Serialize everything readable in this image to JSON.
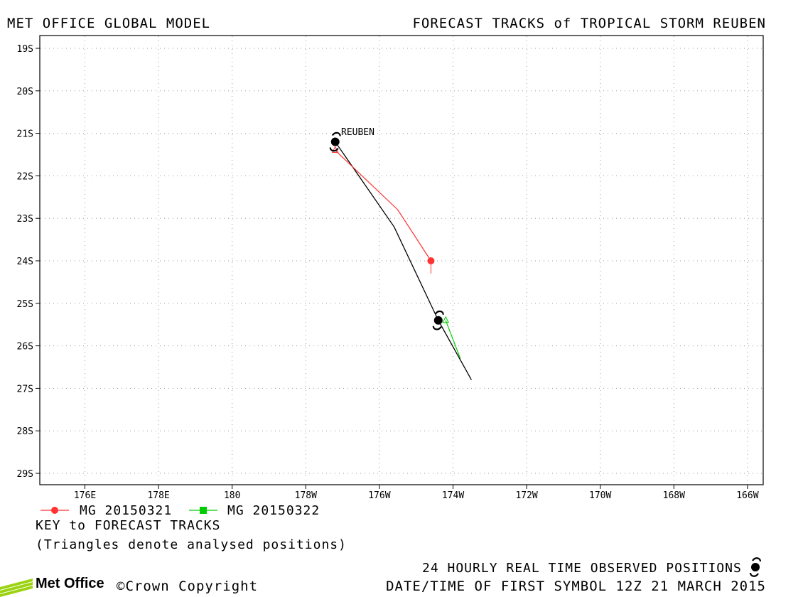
{
  "header": {
    "left_title": "MET OFFICE GLOBAL MODEL",
    "right_title": "FORECAST TRACKS of TROPICAL STORM REUBEN"
  },
  "map": {
    "lat_labels": [
      "19S",
      "20S",
      "21S",
      "22S",
      "23S",
      "24S",
      "25S",
      "26S",
      "27S",
      "28S",
      "29S"
    ],
    "lon_labels": [
      "176E",
      "178E",
      "180",
      "178W",
      "176W",
      "174W",
      "172W",
      "170W",
      "168W",
      "166W"
    ],
    "storm_label": "REUBEN",
    "observed_track": [
      {
        "lon": -177.2,
        "lat": -21.2
      },
      {
        "lon": -175.6,
        "lat": -23.2
      },
      {
        "lon": -174.4,
        "lat": -25.4
      },
      {
        "lon": -173.5,
        "lat": -26.8
      }
    ],
    "observed_positions": [
      {
        "lon": -177.2,
        "lat": -21.2
      },
      {
        "lon": -174.4,
        "lat": -25.4
      }
    ],
    "tracks": [
      {
        "name": "MG 20150321",
        "color": "#ff3333",
        "points": [
          {
            "lon": -177.2,
            "lat": -21.4
          },
          {
            "lon": -175.5,
            "lat": -22.8
          },
          {
            "lon": -174.6,
            "lat": -24.0
          }
        ]
      },
      {
        "name": "MG 20150322",
        "color": "#00cc00",
        "points": [
          {
            "lon": -174.2,
            "lat": -25.4
          },
          {
            "lon": -173.8,
            "lat": -26.3
          }
        ]
      }
    ]
  },
  "legend": {
    "series_1_label": "MG 20150321",
    "series_2_label": "MG 20150322",
    "key_text": "KEY to FORECAST TRACKS",
    "triangles_note": "(Triangles denote analysed positions)"
  },
  "footer": {
    "observed_text": "24 HOURLY REAL TIME OBSERVED POSITIONS",
    "date_text": "DATE/TIME OF FIRST SYMBOL 12Z 21 MARCH 2015",
    "brand": "Met Office",
    "copyright": "©Crown Copyright"
  },
  "colors": {
    "observed": "#000000",
    "grid": "#999999"
  }
}
